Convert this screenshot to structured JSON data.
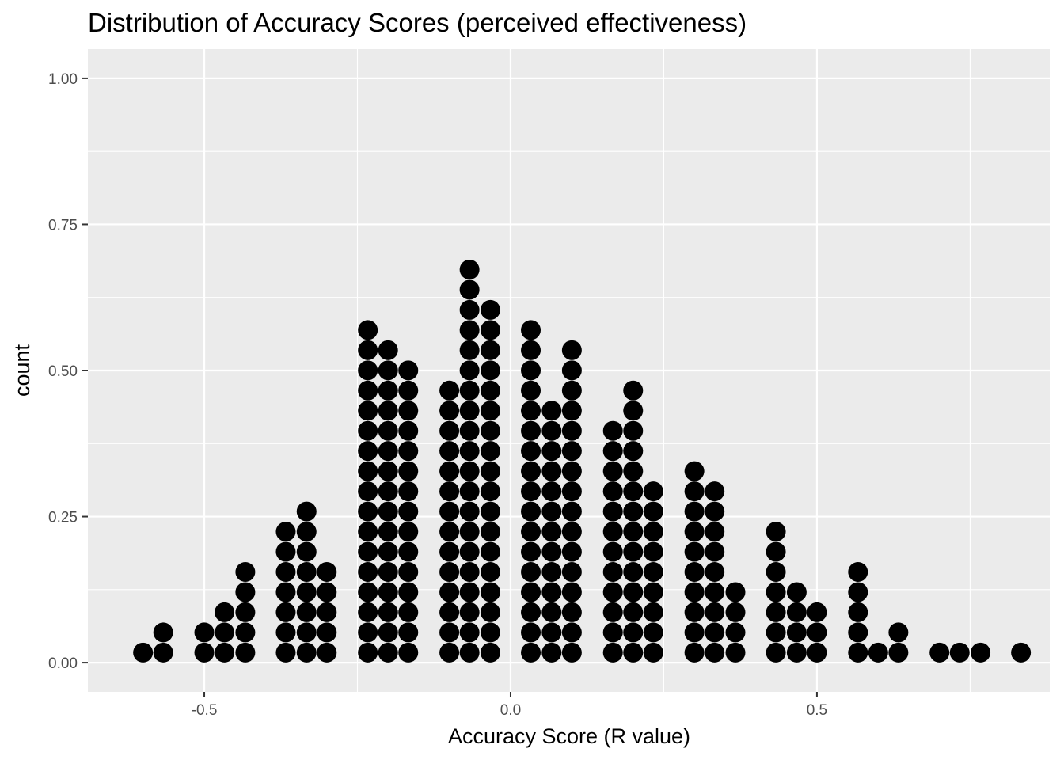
{
  "chart_data": {
    "type": "dotplot",
    "title": "Distribution of Accuracy Scores (perceived effectiveness)",
    "xlabel": "Accuracy Score (R value)",
    "ylabel": "count",
    "xlim": [
      -0.69,
      0.88
    ],
    "ylim": [
      -0.05,
      1.05
    ],
    "x_ticks": [
      {
        "value": -0.5,
        "label": "-0.5"
      },
      {
        "value": 0.0,
        "label": "0.0"
      },
      {
        "value": 0.5,
        "label": "0.5"
      }
    ],
    "y_ticks": [
      {
        "value": 0.0,
        "label": "0.00"
      },
      {
        "value": 0.25,
        "label": "0.25"
      },
      {
        "value": 0.5,
        "label": "0.50"
      },
      {
        "value": 0.75,
        "label": "0.75"
      },
      {
        "value": 1.0,
        "label": "1.00"
      }
    ],
    "grid": true,
    "legend": "none",
    "dot_color": "#000000",
    "panel_background": "#ebebeb",
    "stacks": [
      {
        "x": -0.6,
        "count": 1
      },
      {
        "x": -0.567,
        "count": 2
      },
      {
        "x": -0.5,
        "count": 2
      },
      {
        "x": -0.467,
        "count": 3
      },
      {
        "x": -0.433,
        "count": 5
      },
      {
        "x": -0.367,
        "count": 7
      },
      {
        "x": -0.333,
        "count": 8
      },
      {
        "x": -0.3,
        "count": 5
      },
      {
        "x": -0.233,
        "count": 17
      },
      {
        "x": -0.2,
        "count": 16
      },
      {
        "x": -0.167,
        "count": 15
      },
      {
        "x": -0.1,
        "count": 14
      },
      {
        "x": -0.067,
        "count": 20
      },
      {
        "x": -0.033,
        "count": 18
      },
      {
        "x": 0.033,
        "count": 17
      },
      {
        "x": 0.067,
        "count": 13
      },
      {
        "x": 0.1,
        "count": 16
      },
      {
        "x": 0.167,
        "count": 12
      },
      {
        "x": 0.2,
        "count": 14
      },
      {
        "x": 0.233,
        "count": 9
      },
      {
        "x": 0.3,
        "count": 10
      },
      {
        "x": 0.333,
        "count": 9
      },
      {
        "x": 0.367,
        "count": 4
      },
      {
        "x": 0.433,
        "count": 7
      },
      {
        "x": 0.467,
        "count": 4
      },
      {
        "x": 0.5,
        "count": 3
      },
      {
        "x": 0.567,
        "count": 5
      },
      {
        "x": 0.6,
        "count": 1
      },
      {
        "x": 0.633,
        "count": 2
      },
      {
        "x": 0.7,
        "count": 1
      },
      {
        "x": 0.733,
        "count": 1
      },
      {
        "x": 0.767,
        "count": 1
      },
      {
        "x": 0.833,
        "count": 1
      }
    ],
    "dot_step_count": 0.0345
  }
}
